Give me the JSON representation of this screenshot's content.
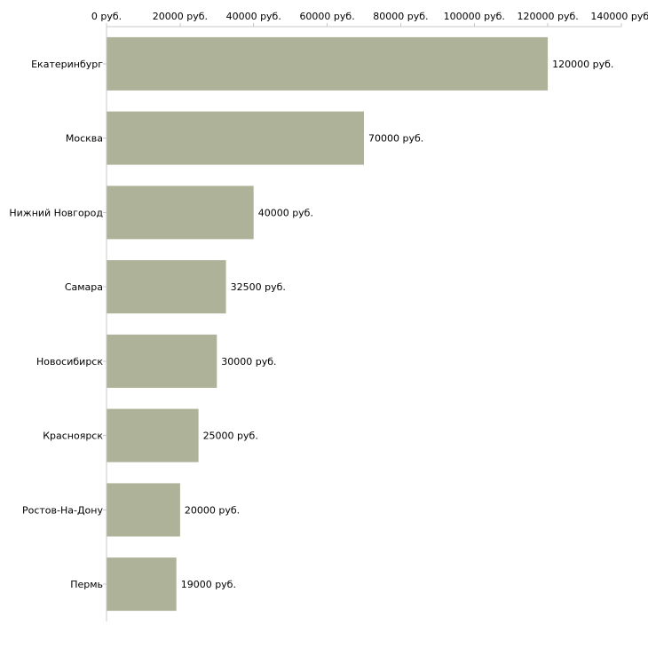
{
  "chart_data": {
    "type": "bar",
    "orientation": "horizontal",
    "title": "",
    "xlabel": "",
    "ylabel": "",
    "categories": [
      "Екатеринбург",
      "Москва",
      "Нижний Новгород",
      "Самара",
      "Новосибирск",
      "Красноярск",
      "Ростов-На-Дону",
      "Пермь"
    ],
    "values": [
      120000,
      70000,
      40000,
      32500,
      30000,
      25000,
      20000,
      19000
    ],
    "value_labels": [
      "120000 руб.",
      "70000 руб.",
      "40000 руб.",
      "32500 руб.",
      "30000 руб.",
      "25000 руб.",
      "20000 руб.",
      "19000 руб."
    ],
    "xlim": [
      0,
      140000
    ],
    "ticks": [
      0,
      20000,
      40000,
      60000,
      80000,
      100000,
      120000,
      140000
    ],
    "tick_labels": [
      "0 руб.",
      "20000 руб.",
      "40000 руб.",
      "60000 руб.",
      "80000 руб.",
      "100000 руб.",
      "120000 руб.",
      "140000 руб."
    ],
    "axis_position": "top",
    "grid": false,
    "legend": "none",
    "bar_color": "#adb299",
    "axis_color": "#c8c8c8"
  }
}
